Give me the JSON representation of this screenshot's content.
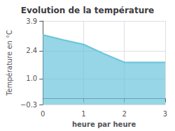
{
  "chart_data": {
    "type": "area",
    "title": "Evolution de la température",
    "xlabel": "heure par heure",
    "ylabel": "Température en °C",
    "x": [
      0,
      0.5,
      1.0,
      1.5,
      2.0,
      2.5,
      3.0
    ],
    "values": [
      3.2,
      2.95,
      2.72,
      2.25,
      1.82,
      1.82,
      1.82
    ],
    "color": "#6ac4dc",
    "xlim": [
      0,
      3
    ],
    "ylim": [
      -0.3,
      3.9
    ],
    "xticks": [
      0,
      1,
      2,
      3
    ],
    "yticks": [
      {
        "value": -0.3,
        "label": "−0.3"
      },
      {
        "value": 1,
        "label": "1.0"
      },
      2.4,
      3.9
    ],
    "grid": true
  }
}
